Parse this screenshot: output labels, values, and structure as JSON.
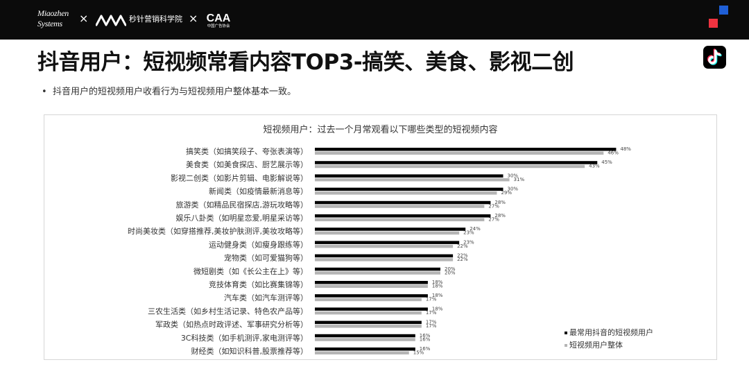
{
  "header": {
    "logo_miaozhen_line1": "Miaozhen",
    "logo_miaozhen_line2": "Systems",
    "separator": "×",
    "academy_name": "秒针营销科学院",
    "caa_logo": "CAA",
    "caa_subtitle": "中国广告协会",
    "colors": {
      "bar": "#0b0b0b",
      "accent_blue": "#1f5fd6",
      "accent_red": "#ef3340"
    }
  },
  "page": {
    "title": "抖音用户：短视频常看内容TOP3-搞笑、美食、影视二创",
    "bullet_marker": "•",
    "bullet": "抖音用户的短视频用户收看行为与短视频用户整体基本一致。",
    "badge_icon": "tiktok-icon"
  },
  "chart_data": {
    "type": "bar",
    "orientation": "horizontal",
    "title": "短视频用户：过去一个月常观看以下哪些类型的短视频内容",
    "categories": [
      "搞笑类（如搞笑段子、夸张表演等）",
      "美食类（如美食探店、厨艺展示等）",
      "影视二创类（如影片剪辑、电影解说等）",
      "新闻类（如疫情最新消息等）",
      "旅游类（如精品民宿探店,游玩攻略等）",
      "娱乐八卦类（如明星恋爱,明星采访等）",
      "时尚美妆类（如穿搭推荐,美妆护肤测评,美妆攻略等）",
      "运动健身类（如瘦身跟练等）",
      "宠物类（如可爱猫狗等）",
      "微短剧类（如《长公主在上》等）",
      "竞技体育类（如比赛集锦等）",
      "汽车类（如汽车测评等）",
      "三农生活类（如乡村生活记录、特色农产品等）",
      "军政类（如热点时政评述、军事研究分析等）",
      "3C科技类（如手机测评,家电测评等）",
      "财经类（如知识科普,股票推荐等）"
    ],
    "series": [
      {
        "name": "最常用抖音的短视频用户",
        "color": "#000000",
        "values": [
          48,
          45,
          30,
          30,
          28,
          28,
          24,
          23,
          22,
          20,
          18,
          18,
          18,
          17,
          16,
          16
        ],
        "labels": [
          "48%",
          "45%",
          "30%",
          "30%",
          "28%",
          "28%",
          "24%",
          "23%",
          "22%",
          "20%",
          "18%",
          "18%",
          "18%",
          "17%",
          "16%",
          "16%"
        ]
      },
      {
        "name": "短视频用户整体",
        "color": "#b5b5b5",
        "values": [
          46,
          43,
          31,
          29,
          27,
          27,
          23,
          22,
          22,
          20,
          18,
          17,
          17,
          17,
          16,
          15
        ],
        "labels": [
          "46%",
          "43%",
          "31%",
          "29%",
          "27%",
          "27%",
          "23%",
          "22%",
          "22%",
          "20%",
          "18%",
          "17%",
          "17%",
          "17%",
          "16%",
          "15%"
        ]
      }
    ],
    "xlim": [
      0,
      50
    ],
    "grid": false,
    "legend": "bottom-right",
    "legend_marker": "▪"
  }
}
